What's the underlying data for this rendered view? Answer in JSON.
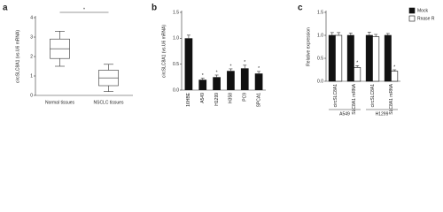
{
  "chart_data": [
    {
      "type": "box",
      "letter": "a",
      "ylabel": "circSLC8A1 (vs.U6 mRNA)",
      "categories": [
        "Normal tissues",
        "NSCLC tissues"
      ],
      "boxes": [
        {
          "whislo": 1.5,
          "q1": 1.9,
          "med": 2.4,
          "q3": 2.9,
          "whishi": 3.3
        },
        {
          "whislo": 0.2,
          "q1": 0.5,
          "med": 0.9,
          "q3": 1.3,
          "whishi": 1.6
        }
      ],
      "significance": "*",
      "ylim": [
        0,
        4
      ],
      "yticks": [
        0,
        1,
        2,
        3,
        4
      ]
    },
    {
      "type": "bar",
      "letter": "b",
      "ylabel": "circSLC8A1 (vs.U6 mRNA)",
      "categories": [
        "16HBE",
        "A549",
        "H1299",
        "H358",
        "PC9",
        "SPCA1"
      ],
      "values": [
        1.0,
        0.2,
        0.25,
        0.37,
        0.42,
        0.32
      ],
      "errors": [
        0.06,
        0.03,
        0.04,
        0.04,
        0.06,
        0.04
      ],
      "sig_marks": [
        null,
        "*",
        "*",
        "*",
        "*",
        "*"
      ],
      "color": "#111111",
      "ylim": [
        0,
        1.5
      ],
      "yticks": [
        {
          "value": 0,
          "label": "0.0"
        },
        {
          "value": 0.5,
          "label": "0.5"
        },
        {
          "value": 1,
          "label": "1.0"
        },
        {
          "value": 1.5,
          "label": "1.5"
        }
      ]
    },
    {
      "type": "grouped_bar",
      "letter": "c",
      "ylabel": "Relative expression",
      "categories": [
        "circSLC8A1",
        "SLC8A1 mRNA",
        "circSLC8A1",
        "SLC8A1 mRNA"
      ],
      "groups": [
        "A549",
        "H1299"
      ],
      "series": [
        {
          "name": "Mock",
          "color": "#111111",
          "values": [
            1.0,
            1.0,
            1.0,
            1.0
          ],
          "errors": [
            0.06,
            0.05,
            0.07,
            0.04
          ]
        },
        {
          "name": "Rnase R",
          "color": "#ffffff",
          "values": [
            1.0,
            0.3,
            0.97,
            0.22
          ],
          "errors": [
            0.06,
            0.04,
            0.05,
            0.03
          ],
          "sig_marks": [
            null,
            "*",
            null,
            "*"
          ]
        }
      ],
      "legend": "top-right",
      "ylim": [
        0,
        1.5
      ],
      "yticks": [
        {
          "value": 0,
          "label": "0.0"
        },
        {
          "value": 0.5,
          "label": "0.5"
        },
        {
          "value": 1,
          "label": "1.0"
        },
        {
          "value": 1.5,
          "label": "1.5"
        }
      ]
    }
  ]
}
